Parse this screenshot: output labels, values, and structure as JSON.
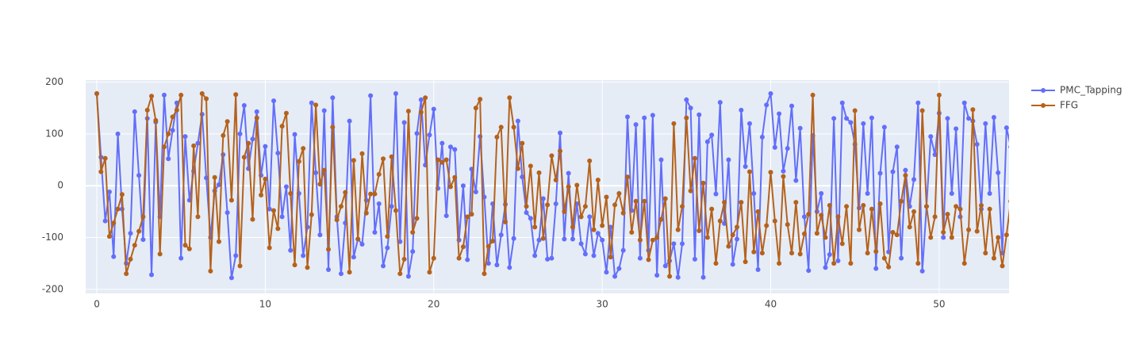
{
  "chart_data": {
    "type": "line",
    "x": [
      0,
      0.25,
      0.5,
      0.75,
      1,
      1.25,
      1.5,
      1.75,
      2,
      2.25,
      2.5,
      2.75,
      3,
      3.25,
      3.5,
      3.75,
      4,
      4.25,
      4.5,
      4.75,
      5,
      5.25,
      5.5,
      5.75,
      6,
      6.25,
      6.5,
      6.75,
      7,
      7.25,
      7.5,
      7.75,
      8,
      8.25,
      8.5,
      8.75,
      9,
      9.25,
      9.5,
      9.75,
      10,
      10.25,
      10.5,
      10.75,
      11,
      11.25,
      11.5,
      11.75,
      12,
      12.25,
      12.5,
      12.75,
      13,
      13.25,
      13.5,
      13.75,
      14,
      14.25,
      14.5,
      14.75,
      15,
      15.25,
      15.5,
      15.75,
      16,
      16.25,
      16.5,
      16.75,
      17,
      17.25,
      17.5,
      17.75,
      18,
      18.25,
      18.5,
      18.75,
      19,
      19.25,
      19.5,
      19.75,
      20,
      20.25,
      20.5,
      20.75,
      21,
      21.25,
      21.5,
      21.75,
      22,
      22.25,
      22.5,
      22.75,
      23,
      23.25,
      23.5,
      23.75,
      24,
      24.25,
      24.5,
      24.75,
      25,
      25.25,
      25.5,
      25.75,
      26,
      26.25,
      26.5,
      26.75,
      27,
      27.25,
      27.5,
      27.75,
      28,
      28.25,
      28.5,
      28.75,
      29,
      29.25,
      29.5,
      29.75,
      30,
      30.25,
      30.5,
      30.75,
      31,
      31.25,
      31.5,
      31.75,
      32,
      32.25,
      32.5,
      32.75,
      33,
      33.25,
      33.5,
      33.75,
      34,
      34.25,
      34.5,
      34.75,
      35,
      35.25,
      35.5,
      35.75,
      36,
      36.25,
      36.5,
      36.75,
      37,
      37.25,
      37.5,
      37.75,
      38,
      38.25,
      38.5,
      38.75,
      39,
      39.25,
      39.5,
      39.75,
      40,
      40.25,
      40.5,
      40.75,
      41,
      41.25,
      41.5,
      41.75,
      42,
      42.25,
      42.5,
      42.75,
      43,
      43.25,
      43.5,
      43.75,
      44,
      44.25,
      44.5,
      44.75,
      45,
      45.25,
      45.5,
      45.75,
      46,
      46.25,
      46.5,
      46.75,
      47,
      47.25,
      47.5,
      47.75,
      48,
      48.25,
      48.5,
      48.75,
      49,
      49.25,
      49.5,
      49.75,
      50,
      50.25,
      50.5,
      50.75,
      51,
      51.25,
      51.5,
      51.75,
      52,
      52.25,
      52.5,
      52.75,
      53,
      53.25,
      53.5,
      53.75,
      54,
      54.25
    ],
    "series": [
      {
        "name": "PMC_Tapping",
        "color": "#636efa",
        "values": [
          178,
          55,
          -68,
          -12,
          -137,
          100,
          -45,
          -150,
          -92,
          143,
          20,
          -104,
          130,
          -172,
          123,
          -60,
          175,
          52,
          107,
          160,
          -140,
          95,
          -28,
          28,
          82,
          138,
          15,
          -100,
          -10,
          2,
          60,
          -52,
          -178,
          -135,
          100,
          155,
          33,
          90,
          143,
          20,
          76,
          -45,
          164,
          63,
          -60,
          -2,
          -125,
          99,
          -15,
          -135,
          -80,
          160,
          25,
          -95,
          145,
          -162,
          170,
          -60,
          -170,
          -72,
          125,
          -138,
          -103,
          -113,
          -28,
          174,
          -90,
          -35,
          -155,
          -120,
          -40,
          178,
          -108,
          122,
          -175,
          -127,
          101,
          166,
          40,
          98,
          148,
          -5,
          82,
          -58,
          75,
          70,
          -105,
          0,
          -143,
          32,
          -12,
          95,
          -22,
          -150,
          -35,
          -153,
          -95,
          -36,
          -158,
          -102,
          125,
          17,
          -52,
          -63,
          -135,
          -105,
          -25,
          -142,
          -140,
          -35,
          102,
          -103,
          24,
          -103,
          -35,
          -112,
          -132,
          -60,
          -135,
          -92,
          -105,
          -167,
          -80,
          -175,
          -160,
          -125,
          133,
          -48,
          118,
          -140,
          131,
          -125,
          136,
          -173,
          50,
          -155,
          -145,
          -112,
          -177,
          -112,
          166,
          150,
          -142,
          137,
          -177,
          85,
          98,
          -16,
          161,
          -73,
          50,
          -152,
          -103,
          146,
          37,
          120,
          -15,
          -162,
          94,
          156,
          178,
          74,
          139,
          28,
          72,
          154,
          10,
          111,
          -60,
          -164,
          97,
          -50,
          -15,
          -158,
          -133,
          130,
          -145,
          160,
          130,
          122,
          80,
          -43,
          120,
          -15,
          131,
          -160,
          24,
          113,
          -128,
          27,
          75,
          -140,
          30,
          -40,
          12,
          160,
          -165,
          -40,
          95,
          60,
          140,
          -100,
          130,
          -15,
          110,
          -60,
          160,
          130,
          125,
          80,
          -45,
          120,
          -15,
          132,
          25,
          -130,
          112,
          75
        ]
      },
      {
        "name": "FFG",
        "color": "#b5621b",
        "values": [
          178,
          27,
          53,
          -98,
          -72,
          -45,
          -17,
          -170,
          -142,
          -115,
          -88,
          -60,
          146,
          173,
          126,
          -132,
          75,
          100,
          133,
          146,
          175,
          -115,
          -122,
          77,
          -60,
          178,
          168,
          -165,
          16,
          -108,
          97,
          124,
          -28,
          176,
          -155,
          55,
          82,
          -65,
          131,
          -18,
          13,
          -120,
          -48,
          -83,
          115,
          140,
          -15,
          -153,
          47,
          72,
          -158,
          -56,
          156,
          3,
          30,
          -123,
          113,
          -66,
          -40,
          -13,
          -167,
          49,
          -103,
          62,
          -53,
          -16,
          -16,
          22,
          52,
          -98,
          56,
          -48,
          -170,
          -142,
          144,
          -90,
          -63,
          142,
          170,
          -167,
          -140,
          50,
          45,
          50,
          -2,
          16,
          -140,
          -118,
          -60,
          -55,
          150,
          167,
          -170,
          -117,
          -107,
          94,
          113,
          -70,
          170,
          113,
          33,
          82,
          -40,
          38,
          -80,
          25,
          -102,
          -37,
          58,
          11,
          67,
          -50,
          -2,
          -80,
          1,
          -60,
          -40,
          48,
          -85,
          11,
          -77,
          -22,
          -138,
          -37,
          -15,
          -53,
          17,
          -90,
          -30,
          -105,
          -30,
          -143,
          -105,
          -100,
          -65,
          -25,
          -175,
          120,
          -85,
          -40,
          131,
          -10,
          53,
          -87,
          5,
          -100,
          -45,
          -150,
          -68,
          -32,
          -117,
          -95,
          -80,
          -32,
          -147,
          27,
          -128,
          -50,
          -130,
          -77,
          26,
          -68,
          -150,
          18,
          -75,
          -130,
          -32,
          -132,
          -93,
          -55,
          175,
          -92,
          -57,
          -100,
          -38,
          -150,
          -60,
          -112,
          -40,
          -150,
          145,
          -85,
          -38,
          -130,
          -45,
          -127,
          -35,
          -140,
          -157,
          -90,
          -95,
          -30,
          20,
          -80,
          -50,
          -150,
          145,
          -40,
          -100,
          -60,
          175,
          -90,
          -55,
          -100,
          -40,
          -45,
          -150,
          -85,
          147,
          -88,
          -38,
          -130,
          -45,
          -140,
          -100,
          -155,
          -95,
          -30
        ]
      }
    ],
    "xlim": [
      -0.66,
      54.15
    ],
    "ylim": [
      -208,
      204
    ],
    "xticks": [
      0,
      10,
      20,
      30,
      40,
      50
    ],
    "yticks": [
      -200,
      -100,
      0,
      100,
      200
    ],
    "grid": true,
    "legend": "right"
  }
}
